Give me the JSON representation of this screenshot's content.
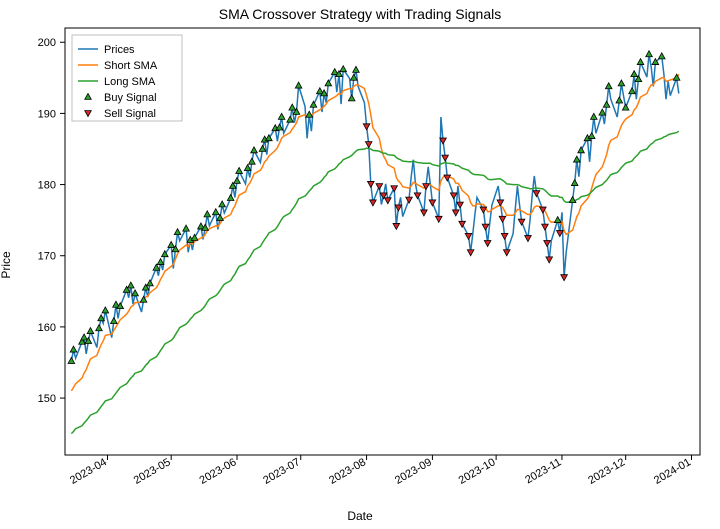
{
  "chart": {
    "type": "line+scatter",
    "title": "SMA Crossover Strategy with Trading Signals",
    "xlabel": "Date",
    "ylabel": "Price",
    "title_fontsize": 14,
    "label_fontsize": 12,
    "tick_fontsize": 11,
    "background_color": "#ffffff",
    "border_color": "#000000",
    "ylim": [
      142,
      202
    ],
    "yticks": [
      150,
      160,
      170,
      180,
      190,
      200
    ],
    "xticks": [
      "2023-04",
      "2023-05",
      "2023-06",
      "2023-07",
      "2023-08",
      "2023-09",
      "2023-10",
      "2023-11",
      "2023-12",
      "2024-01"
    ],
    "x_domain": [
      "2023-03-12",
      "2024-01-05"
    ],
    "line_width": 1.5,
    "marker_size": 6,
    "legend": {
      "position": "upper-left",
      "items": [
        {
          "label": "Prices",
          "type": "line",
          "color": "#1f77b4"
        },
        {
          "label": "Short SMA",
          "type": "line",
          "color": "#ff7f0e"
        },
        {
          "label": "Long SMA",
          "type": "line",
          "color": "#2ca02c"
        },
        {
          "label": "Buy Signal",
          "type": "marker",
          "shape": "triangle-up",
          "face": "#2ca02c",
          "edge": "#000000"
        },
        {
          "label": "Sell Signal",
          "type": "marker",
          "shape": "triangle-down",
          "face": "#d62728",
          "edge": "#000000"
        }
      ]
    },
    "series": {
      "dates": [
        "2023-03-15",
        "2023-03-16",
        "2023-03-17",
        "2023-03-20",
        "2023-03-21",
        "2023-03-22",
        "2023-03-23",
        "2023-03-24",
        "2023-03-27",
        "2023-03-28",
        "2023-03-29",
        "2023-03-30",
        "2023-03-31",
        "2023-04-03",
        "2023-04-04",
        "2023-04-05",
        "2023-04-06",
        "2023-04-07",
        "2023-04-10",
        "2023-04-11",
        "2023-04-12",
        "2023-04-13",
        "2023-04-14",
        "2023-04-17",
        "2023-04-18",
        "2023-04-19",
        "2023-04-20",
        "2023-04-21",
        "2023-04-24",
        "2023-04-25",
        "2023-04-26",
        "2023-04-27",
        "2023-04-28",
        "2023-05-01",
        "2023-05-02",
        "2023-05-03",
        "2023-05-04",
        "2023-05-05",
        "2023-05-08",
        "2023-05-09",
        "2023-05-10",
        "2023-05-11",
        "2023-05-12",
        "2023-05-15",
        "2023-05-16",
        "2023-05-17",
        "2023-05-18",
        "2023-05-19",
        "2023-05-22",
        "2023-05-23",
        "2023-05-24",
        "2023-05-25",
        "2023-05-26",
        "2023-05-29",
        "2023-05-30",
        "2023-05-31",
        "2023-06-01",
        "2023-06-02",
        "2023-06-05",
        "2023-06-06",
        "2023-06-07",
        "2023-06-08",
        "2023-06-09",
        "2023-06-12",
        "2023-06-13",
        "2023-06-14",
        "2023-06-15",
        "2023-06-16",
        "2023-06-19",
        "2023-06-20",
        "2023-06-21",
        "2023-06-22",
        "2023-06-23",
        "2023-06-26",
        "2023-06-27",
        "2023-06-28",
        "2023-06-29",
        "2023-06-30",
        "2023-07-03",
        "2023-07-04",
        "2023-07-05",
        "2023-07-06",
        "2023-07-07",
        "2023-07-10",
        "2023-07-11",
        "2023-07-12",
        "2023-07-13",
        "2023-07-14",
        "2023-07-17",
        "2023-07-18",
        "2023-07-19",
        "2023-07-20",
        "2023-07-21",
        "2023-07-24",
        "2023-07-25",
        "2023-07-26",
        "2023-07-27",
        "2023-07-28",
        "2023-07-31",
        "2023-08-01",
        "2023-08-02",
        "2023-08-03",
        "2023-08-04",
        "2023-08-07",
        "2023-08-08",
        "2023-08-09",
        "2023-08-10",
        "2023-08-11",
        "2023-08-14",
        "2023-08-15",
        "2023-08-16",
        "2023-08-17",
        "2023-08-18",
        "2023-08-21",
        "2023-08-22",
        "2023-08-23",
        "2023-08-24",
        "2023-08-25",
        "2023-08-28",
        "2023-08-29",
        "2023-08-30",
        "2023-08-31",
        "2023-09-01",
        "2023-09-04",
        "2023-09-05",
        "2023-09-06",
        "2023-09-07",
        "2023-09-08",
        "2023-09-11",
        "2023-09-12",
        "2023-09-13",
        "2023-09-14",
        "2023-09-15",
        "2023-09-18",
        "2023-09-19",
        "2023-09-20",
        "2023-09-21",
        "2023-09-22",
        "2023-09-25",
        "2023-09-26",
        "2023-09-27",
        "2023-09-28",
        "2023-09-29",
        "2023-10-02",
        "2023-10-03",
        "2023-10-04",
        "2023-10-05",
        "2023-10-06",
        "2023-10-09",
        "2023-10-10",
        "2023-10-11",
        "2023-10-12",
        "2023-10-13",
        "2023-10-16",
        "2023-10-17",
        "2023-10-18",
        "2023-10-19",
        "2023-10-20",
        "2023-10-23",
        "2023-10-24",
        "2023-10-25",
        "2023-10-26",
        "2023-10-27",
        "2023-10-30",
        "2023-10-31",
        "2023-11-01",
        "2023-11-02",
        "2023-11-03",
        "2023-11-06",
        "2023-11-07",
        "2023-11-08",
        "2023-11-09",
        "2023-11-10",
        "2023-11-13",
        "2023-11-14",
        "2023-11-15",
        "2023-11-16",
        "2023-11-17",
        "2023-11-20",
        "2023-11-21",
        "2023-11-22",
        "2023-11-23",
        "2023-11-24",
        "2023-11-27",
        "2023-11-28",
        "2023-11-29",
        "2023-11-30",
        "2023-12-01",
        "2023-12-04",
        "2023-12-05",
        "2023-12-06",
        "2023-12-07",
        "2023-12-08",
        "2023-12-11",
        "2023-12-12",
        "2023-12-13",
        "2023-12-14",
        "2023-12-15",
        "2023-12-18",
        "2023-12-19",
        "2023-12-20",
        "2023-12-21",
        "2023-12-22",
        "2023-12-25",
        "2023-12-26"
      ],
      "prices": {
        "color": "#1f77b4",
        "values": [
          155.2,
          156.8,
          155.6,
          157.9,
          158.5,
          156.2,
          158.0,
          159.4,
          157.1,
          159.8,
          161.2,
          160.5,
          162.3,
          158.5,
          160.8,
          163.1,
          161.2,
          162.9,
          165.2,
          164.1,
          165.8,
          163.2,
          164.7,
          162.1,
          163.8,
          165.5,
          164.2,
          166.1,
          168.3,
          167.2,
          169.1,
          168.0,
          170.2,
          171.5,
          168.2,
          170.9,
          173.3,
          172.1,
          173.8,
          170.5,
          172.2,
          170.8,
          172.5,
          174.1,
          172.3,
          173.9,
          175.8,
          174.2,
          176.1,
          173.7,
          175.3,
          177.2,
          176.0,
          178.1,
          179.8,
          178.2,
          180.5,
          181.9,
          180.1,
          182.3,
          181.0,
          183.2,
          184.8,
          183.1,
          185.0,
          186.3,
          184.2,
          186.5,
          187.9,
          186.1,
          188.0,
          189.5,
          187.2,
          189.1,
          190.8,
          188.7,
          190.2,
          193.9,
          191.0,
          186.5,
          189.8,
          187.5,
          191.2,
          193.1,
          190.2,
          192.8,
          191.5,
          194.2,
          195.8,
          193.0,
          195.5,
          191.3,
          196.2,
          194.9,
          192.1,
          195.0,
          196.1,
          193.8,
          191.5,
          188.2,
          185.7,
          180.1,
          177.5,
          179.8,
          177.2,
          178.5,
          180.1,
          177.8,
          179.5,
          174.2,
          176.8,
          178.2,
          175.5,
          177.9,
          181.1,
          183.5,
          180.2,
          178.5,
          176.1,
          179.8,
          182.5,
          180.1,
          177.5,
          175.2,
          189.5,
          186.2,
          183.8,
          181.0,
          178.5,
          176.1,
          179.8,
          177.2,
          174.5,
          172.8,
          170.5,
          173.1,
          175.8,
          178.2,
          176.5,
          174.1,
          171.8,
          174.5,
          177.1,
          179.8,
          177.5,
          175.2,
          172.8,
          170.5,
          173.1,
          176.5,
          179.8,
          177.2,
          174.8,
          172.5,
          175.1,
          178.5,
          181.2,
          178.8,
          176.5,
          174.1,
          171.8,
          169.5,
          172.1,
          175.0,
          173.2,
          176.1,
          167.0,
          170.5,
          177.8,
          180.2,
          183.5,
          181.1,
          184.8,
          186.5,
          183.2,
          186.8,
          189.5,
          187.2,
          190.1,
          188.5,
          191.2,
          193.8,
          192.0,
          189.5,
          191.8,
          194.2,
          192.5,
          190.8,
          193.1,
          195.5,
          192.0,
          194.8,
          197.2,
          195.1,
          198.3,
          196.5,
          193.8,
          197.2,
          198.0,
          195.5,
          192.0,
          194.5,
          192.5,
          195.0,
          192.8
        ]
      },
      "short_sma": {
        "color": "#ff7f0e",
        "values": [
          151.0,
          151.5,
          152.0,
          152.8,
          153.5,
          154.0,
          154.8,
          155.5,
          156.0,
          156.8,
          157.5,
          158.0,
          158.8,
          159.0,
          159.5,
          160.0,
          160.5,
          161.0,
          161.8,
          162.2,
          162.8,
          163.0,
          163.4,
          163.5,
          163.8,
          164.2,
          164.3,
          164.8,
          165.5,
          166.0,
          166.7,
          167.2,
          167.8,
          168.5,
          168.8,
          169.5,
          170.3,
          170.8,
          171.5,
          171.3,
          171.8,
          171.7,
          172.0,
          172.5,
          172.6,
          173.0,
          173.5,
          173.8,
          174.2,
          174.1,
          174.5,
          175.0,
          175.3,
          175.8,
          176.5,
          177.0,
          177.8,
          178.5,
          179.0,
          179.8,
          180.2,
          180.8,
          181.5,
          182.0,
          182.5,
          183.2,
          183.5,
          184.0,
          184.8,
          185.2,
          185.8,
          186.5,
          186.8,
          187.3,
          187.8,
          188.2,
          188.7,
          189.5,
          189.8,
          189.5,
          189.8,
          189.7,
          190.0,
          190.5,
          190.7,
          191.0,
          191.3,
          191.8,
          192.3,
          192.5,
          192.8,
          192.7,
          193.2,
          193.5,
          193.4,
          193.8,
          194.0,
          194.0,
          193.5,
          192.5,
          191.4,
          189.8,
          188.0,
          186.5,
          185.0,
          184.0,
          183.5,
          182.8,
          182.3,
          181.0,
          180.5,
          180.2,
          179.7,
          179.5,
          179.8,
          180.3,
          180.2,
          180.0,
          179.5,
          179.5,
          180.0,
          180.0,
          179.7,
          179.2,
          180.5,
          181.0,
          181.3,
          181.2,
          180.8,
          180.2,
          180.2,
          179.8,
          179.2,
          178.4,
          177.5,
          177.0,
          177.0,
          177.3,
          177.2,
          176.8,
          176.2,
          176.2,
          176.5,
          177.0,
          177.0,
          176.8,
          176.3,
          175.7,
          175.7,
          176.0,
          176.5,
          176.5,
          176.3,
          175.8,
          175.8,
          176.2,
          176.8,
          177.0,
          176.8,
          176.3,
          175.7,
          175.0,
          174.7,
          174.8,
          174.5,
          174.8,
          173.5,
          173.0,
          173.6,
          174.5,
          175.5,
          176.0,
          177.0,
          178.0,
          178.5,
          179.5,
          180.5,
          181.4,
          182.5,
          183.3,
          184.2,
          185.5,
          186.2,
          186.7,
          187.5,
          188.3,
          188.8,
          189.2,
          189.8,
          190.5,
          190.8,
          191.5,
          192.3,
          192.8,
          193.5,
          194.0,
          194.0,
          194.5,
          195.0,
          195.0,
          194.5,
          194.6,
          194.7,
          195.0,
          195.5
        ]
      },
      "long_sma": {
        "color": "#2ca02c",
        "values": [
          145.0,
          145.3,
          145.7,
          146.1,
          146.5,
          146.8,
          147.2,
          147.6,
          148.0,
          148.4,
          148.8,
          149.2,
          149.6,
          149.9,
          150.3,
          150.7,
          151.1,
          151.5,
          152.0,
          152.4,
          152.8,
          153.1,
          153.5,
          153.8,
          154.2,
          154.6,
          154.9,
          155.3,
          155.8,
          156.2,
          156.7,
          157.1,
          157.6,
          158.1,
          158.4,
          158.9,
          159.4,
          159.9,
          160.4,
          160.7,
          161.1,
          161.4,
          161.8,
          162.3,
          162.6,
          163.0,
          163.5,
          163.9,
          164.4,
          164.7,
          165.1,
          165.6,
          166.0,
          166.5,
          167.0,
          167.4,
          168.0,
          168.5,
          168.9,
          169.4,
          169.8,
          170.3,
          170.8,
          171.3,
          171.8,
          172.3,
          172.7,
          173.2,
          173.7,
          174.1,
          174.6,
          175.1,
          175.5,
          176.0,
          176.5,
          176.9,
          177.4,
          178.0,
          178.4,
          178.7,
          179.1,
          179.4,
          179.8,
          180.3,
          180.6,
          181.0,
          181.3,
          181.8,
          182.2,
          182.5,
          182.9,
          183.1,
          183.5,
          183.9,
          184.1,
          184.4,
          184.7,
          184.9,
          185.0,
          185.1,
          185.1,
          185.0,
          184.8,
          184.7,
          184.5,
          184.4,
          184.4,
          184.2,
          184.1,
          183.8,
          183.6,
          183.5,
          183.3,
          183.2,
          183.2,
          183.3,
          183.2,
          183.1,
          183.0,
          183.0,
          183.0,
          183.0,
          182.8,
          182.6,
          182.9,
          183.0,
          183.1,
          183.0,
          182.9,
          182.7,
          182.7,
          182.5,
          182.3,
          182.0,
          181.7,
          181.5,
          181.4,
          181.4,
          181.3,
          181.1,
          180.8,
          180.7,
          180.7,
          180.8,
          180.8,
          180.6,
          180.4,
          180.1,
          180.0,
          180.0,
          180.0,
          179.9,
          179.7,
          179.5,
          179.4,
          179.4,
          179.5,
          179.5,
          179.4,
          179.2,
          178.9,
          178.6,
          178.4,
          178.4,
          178.2,
          178.2,
          177.7,
          177.5,
          177.6,
          177.7,
          177.9,
          178.0,
          178.3,
          178.5,
          178.7,
          179.0,
          179.3,
          179.6,
          180.0,
          180.3,
          180.6,
          181.0,
          181.4,
          181.7,
          182.0,
          182.4,
          182.7,
          183.0,
          183.3,
          183.7,
          184.0,
          184.3,
          184.7,
          185.0,
          185.4,
          185.7,
          185.9,
          186.2,
          186.5,
          186.7,
          186.8,
          187.0,
          187.1,
          187.3,
          187.5
        ]
      }
    },
    "buy_signals": {
      "face": "#2ca02c",
      "edge": "#000000",
      "shape": "triangle-up",
      "idx": [
        0,
        1,
        3,
        4,
        6,
        7,
        9,
        10,
        12,
        14,
        15,
        17,
        18,
        20,
        22,
        24,
        25,
        27,
        28,
        30,
        32,
        33,
        35,
        36,
        38,
        40,
        42,
        43,
        45,
        46,
        48,
        50,
        51,
        53,
        54,
        56,
        57,
        59,
        61,
        62,
        64,
        65,
        67,
        68,
        70,
        71,
        73,
        74,
        76,
        77,
        80,
        82,
        83,
        85,
        87,
        88,
        90,
        92,
        94,
        95,
        96,
        163,
        168,
        169,
        170,
        172,
        173,
        175,
        176,
        178,
        180,
        181,
        184,
        185,
        187,
        188,
        189,
        191,
        192,
        194,
        197,
        198,
        203
      ]
    },
    "sell_signals": {
      "face": "#d62728",
      "edge": "#000000",
      "shape": "triangle-down",
      "idx": [
        99,
        100,
        101,
        102,
        103,
        105,
        107,
        108,
        109,
        110,
        113,
        117,
        118,
        119,
        122,
        123,
        125,
        126,
        127,
        128,
        129,
        131,
        132,
        133,
        134,
        138,
        139,
        140,
        144,
        145,
        146,
        147,
        152,
        153,
        157,
        158,
        159,
        160,
        161,
        164,
        166
      ]
    }
  }
}
